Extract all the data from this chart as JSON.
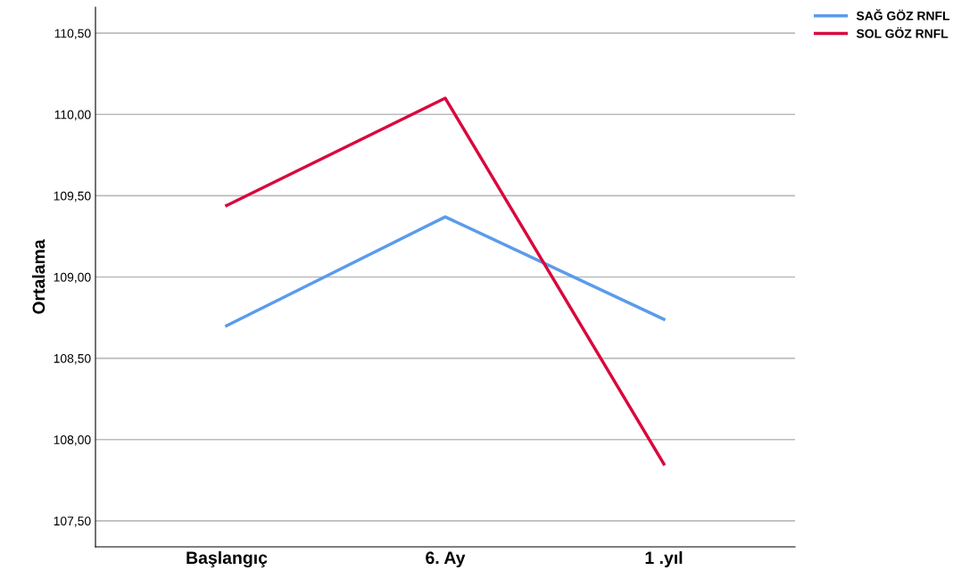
{
  "chart_data": {
    "type": "line",
    "ylabel": "Ortalama",
    "categories": [
      "Başlangıç",
      "6. Ay",
      "1 .yıl"
    ],
    "series": [
      {
        "name": "SAĞ GÖZ RNFL",
        "color": "#5b9bea",
        "values": [
          108.7,
          109.37,
          108.74
        ]
      },
      {
        "name": "SOL GÖZ RNFL",
        "color": "#d9083c",
        "values": [
          109.44,
          110.1,
          107.85
        ]
      }
    ],
    "ylim": [
      107.34,
      110.66
    ],
    "yticks": [
      {
        "value": 107.5,
        "label": "107,50"
      },
      {
        "value": 108.0,
        "label": "108,00"
      },
      {
        "value": 108.5,
        "label": "108,50"
      },
      {
        "value": 109.0,
        "label": "109,00"
      },
      {
        "value": 109.5,
        "label": "109,50"
      },
      {
        "value": 110.0,
        "label": "110,00"
      },
      {
        "value": 110.5,
        "label": "110,50"
      }
    ],
    "grid": "y",
    "legend": "top right",
    "marker": "none",
    "line_style": "solid"
  }
}
